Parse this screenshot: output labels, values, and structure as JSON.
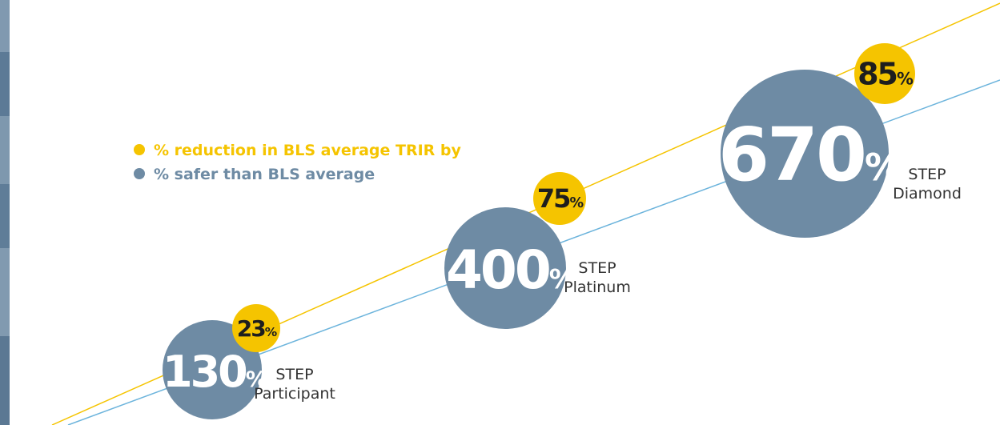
{
  "legend": [
    "% reduction in BLS average TRIR by",
    "% safer than BLS average"
  ],
  "unit": "%",
  "levels": [
    {
      "program": "STEP",
      "tier": "Participant",
      "safer": "130",
      "reduction": "23"
    },
    {
      "program": "STEP",
      "tier": "Platinum",
      "safer": "400",
      "reduction": "75"
    },
    {
      "program": "STEP",
      "tier": "Diamond",
      "safer": "670",
      "reduction": "85"
    }
  ]
}
